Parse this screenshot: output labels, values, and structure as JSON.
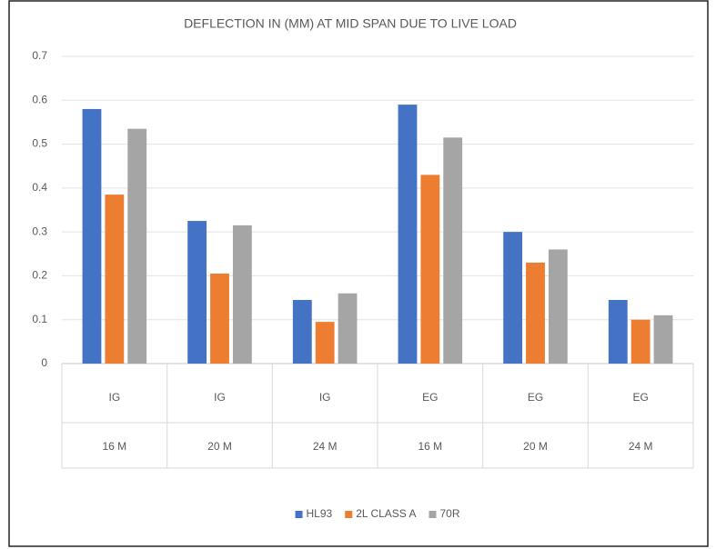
{
  "chart_data": {
    "type": "bar",
    "title": "DEFLECTION IN (MM) AT MID SPAN DUE TO LIVE LOAD",
    "groups": [
      "IG",
      "IG",
      "IG",
      "EG",
      "EG",
      "EG"
    ],
    "categories": [
      "16 M",
      "20 M",
      "24 M",
      "16 M",
      "20 M",
      "24 M"
    ],
    "series": [
      {
        "name": "HL93",
        "color": "#4472c4",
        "values": [
          0.58,
          0.325,
          0.145,
          0.59,
          0.3,
          0.145
        ]
      },
      {
        "name": "2L CLASS A",
        "color": "#ed7d31",
        "values": [
          0.385,
          0.205,
          0.095,
          0.43,
          0.23,
          0.1
        ]
      },
      {
        "name": "70R",
        "color": "#a5a5a5",
        "values": [
          0.535,
          0.315,
          0.16,
          0.515,
          0.26,
          0.11
        ]
      }
    ],
    "ylim": [
      0,
      0.7
    ],
    "yticks": [
      0,
      0.1,
      0.2,
      0.3,
      0.4,
      0.5,
      0.6,
      0.7
    ],
    "grid": true,
    "legend": "bottom"
  }
}
